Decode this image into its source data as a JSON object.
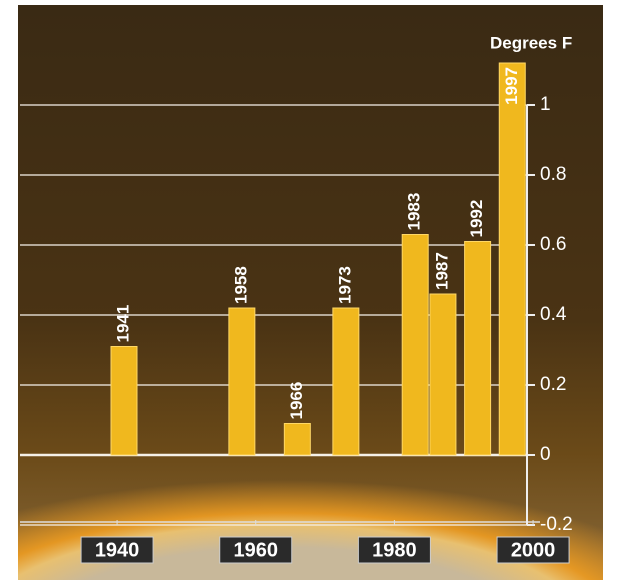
{
  "chart_data": {
    "type": "bar",
    "y_label": "Degrees F",
    "x": [
      1941,
      1958,
      1966,
      1973,
      1983,
      1987,
      1992,
      1997
    ],
    "values": [
      0.31,
      0.42,
      0.09,
      0.42,
      0.63,
      0.46,
      0.61,
      1.12
    ],
    "color": "#f0b81e",
    "xlim": [
      1926,
      2001
    ],
    "xticks": [
      1940,
      1960,
      1980,
      2000
    ],
    "ylim": [
      -0.2,
      1.2
    ],
    "yticks": [
      -0.2,
      0,
      0.2,
      0.4,
      0.6,
      0.8,
      1
    ],
    "grid": true
  }
}
